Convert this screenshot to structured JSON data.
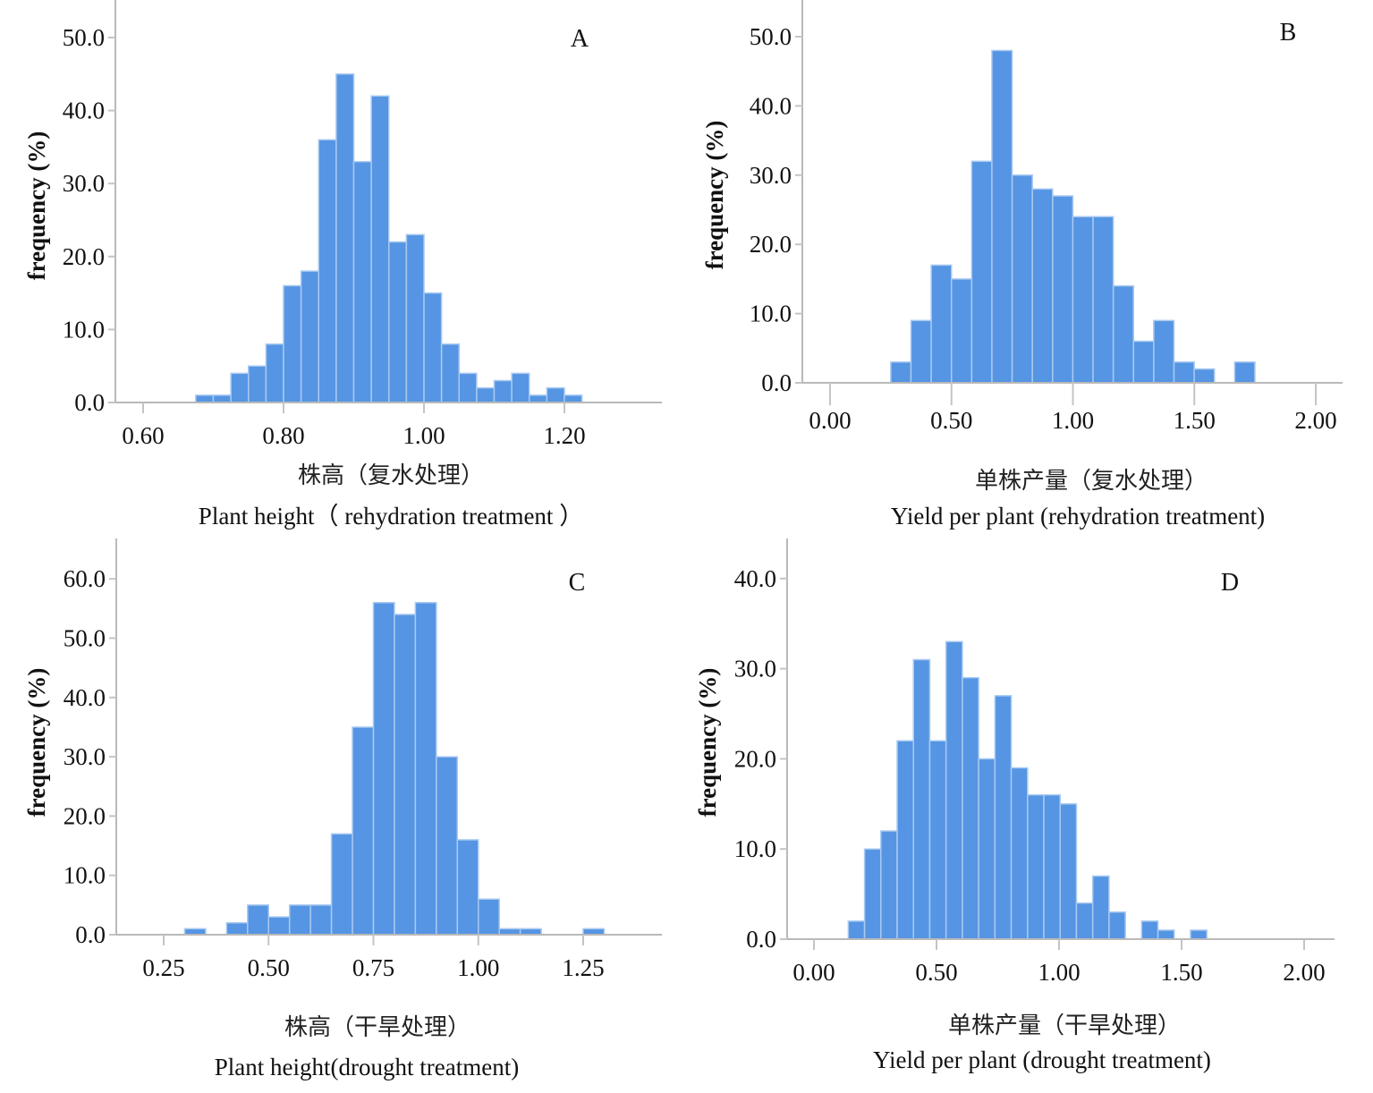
{
  "colors": {
    "bar": "#5595e3",
    "bar_edge": "#a9c9f1",
    "axis": "#b9b9b9"
  },
  "chart_data": [
    {
      "type": "bar",
      "panel": "A",
      "title": "A",
      "xlabel_cn": "株高（复水处理）",
      "xlabel_en": "Plant height（ rehydration treatment ）",
      "ylabel": "frequency (%)",
      "xlim": [
        0.56,
        1.34
      ],
      "ylim": [
        0,
        55
      ],
      "xticks": [
        0.6,
        0.8,
        1.0,
        1.2
      ],
      "xtick_labels": [
        "0.60",
        "0.80",
        "1.00",
        "1.20"
      ],
      "yticks": [
        0,
        10,
        20,
        30,
        40,
        50
      ],
      "ytick_labels": [
        "0.0",
        "10.0",
        "20.0",
        "30.0",
        "40.0",
        "50.0"
      ],
      "bin_start": 0.675,
      "bin_width": 0.025,
      "values": [
        1,
        1,
        4,
        5,
        8,
        16,
        18,
        36,
        45,
        33,
        42,
        22,
        23,
        15,
        8,
        4,
        2,
        3,
        4,
        1,
        2,
        1
      ],
      "grid": false
    },
    {
      "type": "bar",
      "panel": "B",
      "title": "B",
      "xlabel_cn": "单株产量（复水处理）",
      "xlabel_en": "Yield per plant (rehydration treatment)",
      "ylabel": "frequency (%)",
      "xlim": [
        -0.11,
        2.11
      ],
      "ylim": [
        0,
        55
      ],
      "xticks": [
        0.0,
        0.5,
        1.0,
        1.5,
        2.0
      ],
      "xtick_labels": [
        "0.00",
        "0.50",
        "1.00",
        "1.50",
        "2.00"
      ],
      "yticks": [
        0,
        10,
        20,
        30,
        40,
        50
      ],
      "ytick_labels": [
        "0.0",
        "10.0",
        "20.0",
        "30.0",
        "40.0",
        "50.0"
      ],
      "bin_start": 0.25,
      "bin_width": 0.0833,
      "values": [
        3,
        9,
        17,
        15,
        32,
        48,
        30,
        28,
        27,
        24,
        24,
        14,
        6,
        9,
        3,
        2,
        0,
        3
      ],
      "grid": false
    },
    {
      "type": "bar",
      "panel": "C",
      "title": "C",
      "xlabel_cn": "株高（干旱处理）",
      "xlabel_en": "Plant height(drought treatment)",
      "ylabel": "frequency (%)",
      "xlim": [
        0.14,
        1.45
      ],
      "ylim": [
        0,
        67
      ],
      "xticks": [
        0.25,
        0.5,
        0.75,
        1.0,
        1.25
      ],
      "xtick_labels": [
        "0.25",
        "0.50",
        "0.75",
        "1.00",
        "1.25"
      ],
      "yticks": [
        0,
        10,
        20,
        30,
        40,
        50,
        60
      ],
      "ytick_labels": [
        "0.0",
        "10.0",
        "20.0",
        "30.0",
        "40.0",
        "50.0",
        "60.0"
      ],
      "bin_start": 0.3,
      "bin_width": 0.05,
      "values": [
        1,
        0,
        2,
        5,
        3,
        5,
        5,
        17,
        35,
        56,
        54,
        56,
        30,
        16,
        6,
        1,
        1,
        0,
        0,
        1
      ],
      "grid": false
    },
    {
      "type": "bar",
      "panel": "D",
      "title": "D",
      "xlabel_cn": "单株产量（干旱处理）",
      "xlabel_en": "Yield per plant (drought treatment)",
      "ylabel": "frequency (%)",
      "xlim": [
        -0.11,
        2.11
      ],
      "ylim": [
        0,
        44
      ],
      "xticks": [
        0.0,
        0.5,
        1.0,
        1.5,
        2.0
      ],
      "xtick_labels": [
        "0.00",
        "0.50",
        "1.00",
        "1.50",
        "2.00"
      ],
      "yticks": [
        0,
        10,
        20,
        30,
        40
      ],
      "ytick_labels": [
        "0.0",
        "10.0",
        "20.0",
        "30.0",
        "40.0"
      ],
      "bin_start": 0.14,
      "bin_width": 0.0665,
      "values": [
        2,
        10,
        12,
        22,
        31,
        22,
        33,
        29,
        20,
        27,
        19,
        16,
        16,
        15,
        4,
        7,
        3,
        0,
        2,
        1,
        0,
        1
      ],
      "grid": false
    }
  ]
}
